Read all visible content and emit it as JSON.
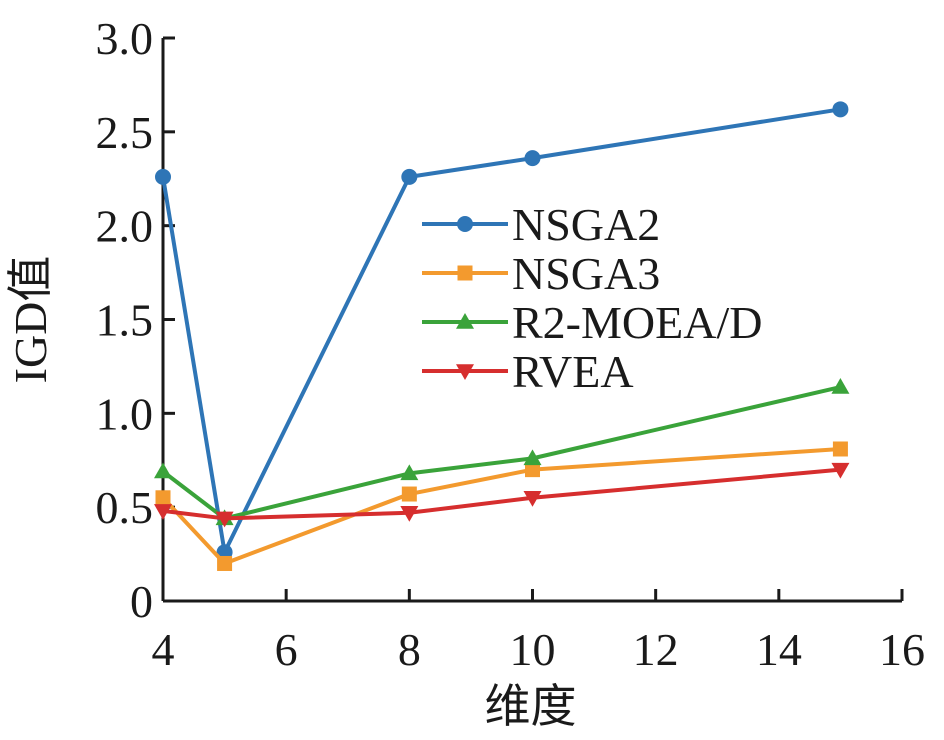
{
  "chart_data": {
    "type": "line",
    "title": "",
    "xlabel": "维度",
    "ylabel": "IGD值",
    "xlim": [
      4,
      16
    ],
    "ylim": [
      0,
      3.0
    ],
    "x_ticks": [
      4,
      6,
      8,
      10,
      12,
      14,
      16
    ],
    "x_tick_labels": [
      "4",
      "6",
      "8",
      "10",
      "12",
      "14",
      "16"
    ],
    "y_ticks": [
      0,
      0.5,
      1.0,
      1.5,
      2.0,
      2.5,
      3.0
    ],
    "y_tick_labels": [
      "0",
      "0.5",
      "1.0",
      "1.5",
      "2.0",
      "2.5",
      "3.0"
    ],
    "x": [
      4,
      5,
      8,
      10,
      15
    ],
    "grid": false,
    "legend_position": "center-right",
    "series": [
      {
        "name": "NSGA2",
        "values": [
          2.26,
          0.26,
          2.26,
          2.36,
          2.62
        ],
        "color": "#2e75b6",
        "marker": "circle"
      },
      {
        "name": "NSGA3",
        "values": [
          0.55,
          0.2,
          0.57,
          0.7,
          0.81
        ],
        "color": "#f39a2e",
        "marker": "square"
      },
      {
        "name": "R2-MOEA/D",
        "values": [
          0.69,
          0.44,
          0.68,
          0.76,
          1.14
        ],
        "color": "#3aa33a",
        "marker": "triangle-up"
      },
      {
        "name": "RVEA",
        "values": [
          0.48,
          0.44,
          0.47,
          0.55,
          0.7
        ],
        "color": "#d62e2e",
        "marker": "triangle-down"
      }
    ]
  }
}
